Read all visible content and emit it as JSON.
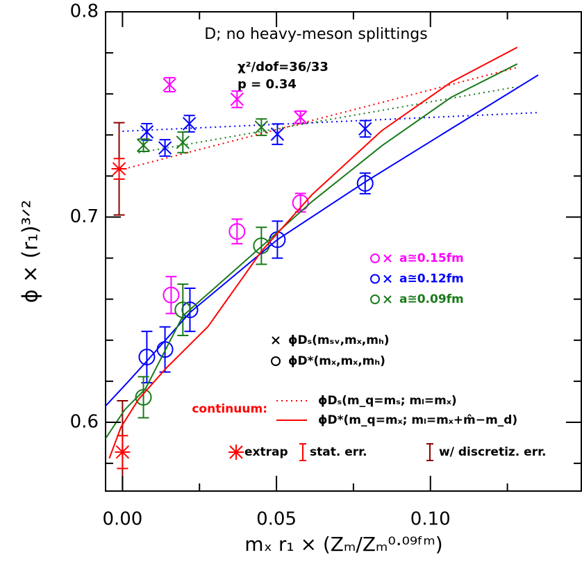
{
  "chart_data": {
    "type": "scatter",
    "title": "D;  no heavy-meson splittings",
    "annotations": [
      "χ²/dof=36/33",
      "p = 0.34"
    ],
    "xlabel": "mₓ r₁ × (Zₘ/Zₘ⁰·⁰⁹ᶠᵐ)",
    "ylabel": "ϕ × (r₁)³ᐟ²",
    "xlim": [
      -0.0055,
      0.149
    ],
    "ylim": [
      0.5665,
      0.8
    ],
    "xticks": [
      {
        "value": 0,
        "label": "0.00"
      },
      0.05,
      {
        "value": 0.1,
        "label": "0.10"
      }
    ],
    "xminorticks": [
      0.025,
      0.075,
      0.125
    ],
    "yticks": [
      0.6,
      0.7,
      0.8
    ],
    "yminorticks": [
      0.58,
      0.62,
      0.64,
      0.66,
      0.68,
      0.72,
      0.74,
      0.76,
      0.78
    ],
    "series": [
      {
        "name": "a≅0.15fm",
        "color": "#ff00ff",
        "marker": "x",
        "x": [
          0.0153,
          0.0372,
          0.0578
        ],
        "values": [
          0.7645,
          0.7574,
          0.7486
        ],
        "errors": [
          0.0034,
          0.004,
          0.003
        ]
      },
      {
        "name": "a≅0.15fm",
        "color": "#ff00ff",
        "marker": "o",
        "x": [
          0.0158,
          0.0372,
          0.0578
        ],
        "values": [
          0.662,
          0.693,
          0.707
        ],
        "errors": [
          0.009,
          0.006,
          0.0045
        ]
      },
      {
        "name": "a≅0.12fm",
        "color": "#0000ff",
        "marker": "x",
        "x": [
          0.0079,
          0.0138,
          0.0217,
          0.0503,
          0.0788
        ],
        "values": [
          0.7415,
          0.7337,
          0.7455,
          0.7404,
          0.743
        ],
        "errors": [
          0.004,
          0.004,
          0.004,
          0.005,
          0.004
        ]
      },
      {
        "name": "a≅0.12fm",
        "color": "#0000ff",
        "marker": "o",
        "x": [
          0.0079,
          0.0138,
          0.0219,
          0.0503,
          0.0788
        ],
        "values": [
          0.6318,
          0.6355,
          0.6548,
          0.689,
          0.7164
        ],
        "errors": [
          0.0125,
          0.011,
          0.0105,
          0.009,
          0.005
        ]
      },
      {
        "name": "a≅0.09fm",
        "color": "#1a7a1a",
        "marker": "x",
        "x": [
          0.0068,
          0.0196,
          0.0451
        ],
        "values": [
          0.735,
          0.7364,
          0.7438
        ],
        "errors": [
          0.003,
          0.005,
          0.004
        ]
      },
      {
        "name": "a≅0.09fm",
        "color": "#1a7a1a",
        "marker": "o",
        "x": [
          0.0068,
          0.0196,
          0.0451
        ],
        "values": [
          0.6122,
          0.6548,
          0.686
        ],
        "errors": [
          0.01,
          0.0125,
          0.009
        ]
      },
      {
        "color": "#ff0000",
        "marker": "star",
        "x": [
          -0.0011,
          0.0
        ],
        "values": [
          0.7235,
          0.5855
        ],
        "errors": [
          0.005,
          0.008
        ],
        "sys_errors": [
          0.0225,
          0.025
        ],
        "sys_color": "#8b0000"
      },
      {
        "type": "line",
        "style": "dotted",
        "color": "#0000ff",
        "x": [
          0.0,
          0.135
        ],
        "values": [
          0.7418,
          0.7509
        ]
      },
      {
        "type": "line",
        "style": "dotted",
        "color": "#1a7a1a",
        "x": [
          0.0052,
          0.1282
        ],
        "values": [
          0.7313,
          0.7635
        ]
      },
      {
        "type": "line",
        "style": "solid",
        "color": "#0000ff",
        "x": [
          -0.0056,
          0.0007,
          0.0079,
          0.0219,
          0.0503,
          0.0788,
          0.1068,
          0.135
        ],
        "values": [
          0.6078,
          0.6179,
          0.6298,
          0.6535,
          0.689,
          0.7171,
          0.7431,
          0.7692
        ]
      },
      {
        "type": "line",
        "style": "solid",
        "color": "#1a7a1a",
        "x": [
          -0.0056,
          0.0007,
          0.0074,
          0.0196,
          0.0451,
          0.0616,
          0.0842,
          0.1068,
          0.1282
        ],
        "values": [
          0.5919,
          0.6061,
          0.6162,
          0.6518,
          0.6856,
          0.7076,
          0.7347,
          0.7584,
          0.7746
        ]
      },
      {
        "name": "ϕDₛ(m_q=mₛ; mₗ=mₓ)",
        "type": "line",
        "style": "dotted",
        "color": "#ff0000",
        "x": [
          -0.0011,
          0.1282
        ],
        "values": [
          0.7228,
          0.7729
        ]
      },
      {
        "name": "ϕD*(m_q=mₓ; mₗ=mₓ+m̂−m_d)",
        "type": "line",
        "style": "solid",
        "color": "#ff0000",
        "x": [
          -0.0043,
          -0.0005,
          0.0052,
          0.0142,
          0.0278,
          0.0451,
          0.0616,
          0.0842,
          0.1068,
          0.1282
        ],
        "values": [
          0.5824,
          0.5976,
          0.6112,
          0.6264,
          0.6467,
          0.6833,
          0.711,
          0.7421,
          0.7658,
          0.7827
        ]
      }
    ],
    "marker_legend": [
      {
        "marker": "x",
        "label": "ϕDₛ(mₛᵥ,mₓ,mₕ)"
      },
      {
        "marker": "o",
        "label": "ϕD*(mₓ,mₓ,mₕ)"
      }
    ],
    "continuum_label": "continuum:",
    "error_legend": [
      "extrap",
      "stat. err.",
      "w/ discretiz. err."
    ]
  }
}
